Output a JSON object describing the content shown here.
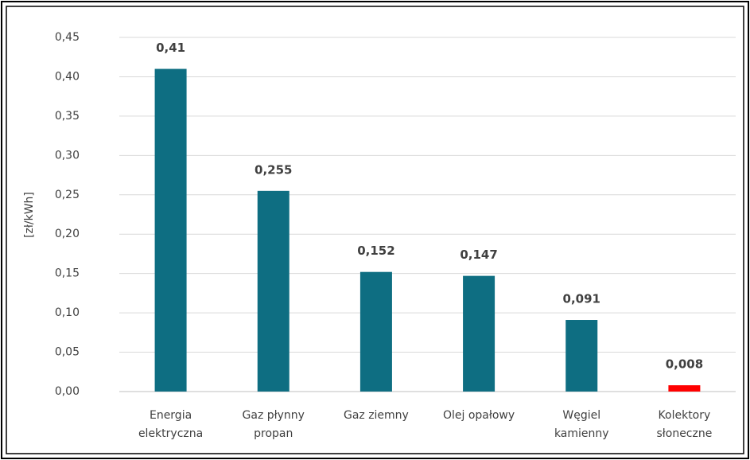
{
  "chart_data": {
    "type": "bar",
    "y_label": "[zł/kWh]",
    "categories": [
      "Energia\nelektryczna",
      "Gaz płynny\npropan",
      "Gaz ziemny",
      "Olej opałowy",
      "Węgiel\nkamienny",
      "Kolektory\nsłoneczne"
    ],
    "values": [
      0.41,
      0.255,
      0.152,
      0.147,
      0.091,
      0.008
    ],
    "value_labels": [
      "0,41",
      "0,255",
      "0,152",
      "0,147",
      "0,091",
      "0,008"
    ],
    "colors": [
      "#0e6e82",
      "#0e6e82",
      "#0e6e82",
      "#0e6e82",
      "#0e6e82",
      "#ff0000"
    ],
    "ylim": [
      0,
      0.45
    ],
    "yticks": [
      {
        "value": 0,
        "label": "0,00"
      },
      {
        "value": 0.05,
        "label": "0,05"
      },
      {
        "value": 0.1,
        "label": "0,10"
      },
      {
        "value": 0.15,
        "label": "0,15"
      },
      {
        "value": 0.2,
        "label": "0,20"
      },
      {
        "value": 0.25,
        "label": "0,25"
      },
      {
        "value": 0.3,
        "label": "0,30"
      },
      {
        "value": 0.35,
        "label": "0,35"
      },
      {
        "value": 0.4,
        "label": "0,40"
      },
      {
        "value": 0.45,
        "label": "0,45"
      }
    ],
    "grid": true
  }
}
